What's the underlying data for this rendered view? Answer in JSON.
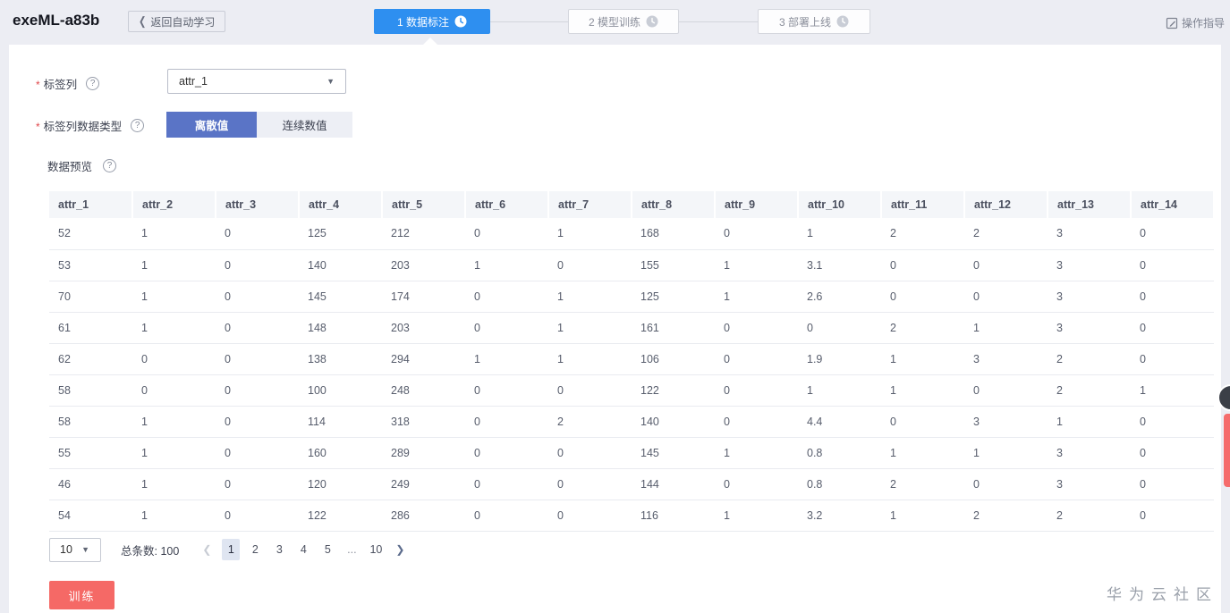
{
  "window": {
    "title": "exeML-a83b",
    "back_button": "返回自动学习",
    "guide_link": "操作指导"
  },
  "steps": [
    {
      "label": "1 数据标注",
      "state": "active"
    },
    {
      "label": "2 模型训练",
      "state": "pending"
    },
    {
      "label": "3 部署上线",
      "state": "pending"
    }
  ],
  "form": {
    "label_column": {
      "label": "标签列",
      "value": "attr_1"
    },
    "label_type": {
      "label": "标签列数据类型",
      "selected": "离散值",
      "unselected": "连续数值"
    },
    "preview_label": "数据预览"
  },
  "table": {
    "columns": [
      "attr_1",
      "attr_2",
      "attr_3",
      "attr_4",
      "attr_5",
      "attr_6",
      "attr_7",
      "attr_8",
      "attr_9",
      "attr_10",
      "attr_11",
      "attr_12",
      "attr_13",
      "attr_14"
    ],
    "rows": [
      [
        "52",
        "1",
        "0",
        "125",
        "212",
        "0",
        "1",
        "168",
        "0",
        "1",
        "2",
        "2",
        "3",
        "0"
      ],
      [
        "53",
        "1",
        "0",
        "140",
        "203",
        "1",
        "0",
        "155",
        "1",
        "3.1",
        "0",
        "0",
        "3",
        "0"
      ],
      [
        "70",
        "1",
        "0",
        "145",
        "174",
        "0",
        "1",
        "125",
        "1",
        "2.6",
        "0",
        "0",
        "3",
        "0"
      ],
      [
        "61",
        "1",
        "0",
        "148",
        "203",
        "0",
        "1",
        "161",
        "0",
        "0",
        "2",
        "1",
        "3",
        "0"
      ],
      [
        "62",
        "0",
        "0",
        "138",
        "294",
        "1",
        "1",
        "106",
        "0",
        "1.9",
        "1",
        "3",
        "2",
        "0"
      ],
      [
        "58",
        "0",
        "0",
        "100",
        "248",
        "0",
        "0",
        "122",
        "0",
        "1",
        "1",
        "0",
        "2",
        "1"
      ],
      [
        "58",
        "1",
        "0",
        "114",
        "318",
        "0",
        "2",
        "140",
        "0",
        "4.4",
        "0",
        "3",
        "1",
        "0"
      ],
      [
        "55",
        "1",
        "0",
        "160",
        "289",
        "0",
        "0",
        "145",
        "1",
        "0.8",
        "1",
        "1",
        "3",
        "0"
      ],
      [
        "46",
        "1",
        "0",
        "120",
        "249",
        "0",
        "0",
        "144",
        "0",
        "0.8",
        "2",
        "0",
        "3",
        "0"
      ],
      [
        "54",
        "1",
        "0",
        "122",
        "286",
        "0",
        "0",
        "116",
        "1",
        "3.2",
        "1",
        "2",
        "2",
        "0"
      ]
    ]
  },
  "pagination": {
    "page_size": "10",
    "total_label": "总条数:",
    "total": "100",
    "pages": [
      "1",
      "2",
      "3",
      "4",
      "5",
      "...",
      "10"
    ],
    "current_page": "1"
  },
  "footer": {
    "train_button": "训练",
    "watermark": "华为云社区"
  },
  "colors": {
    "accent_blue": "#2e8ff0",
    "toggle_blue": "#5a74c6",
    "train_red": "#f56966",
    "header_bg": "#ecedf3"
  }
}
